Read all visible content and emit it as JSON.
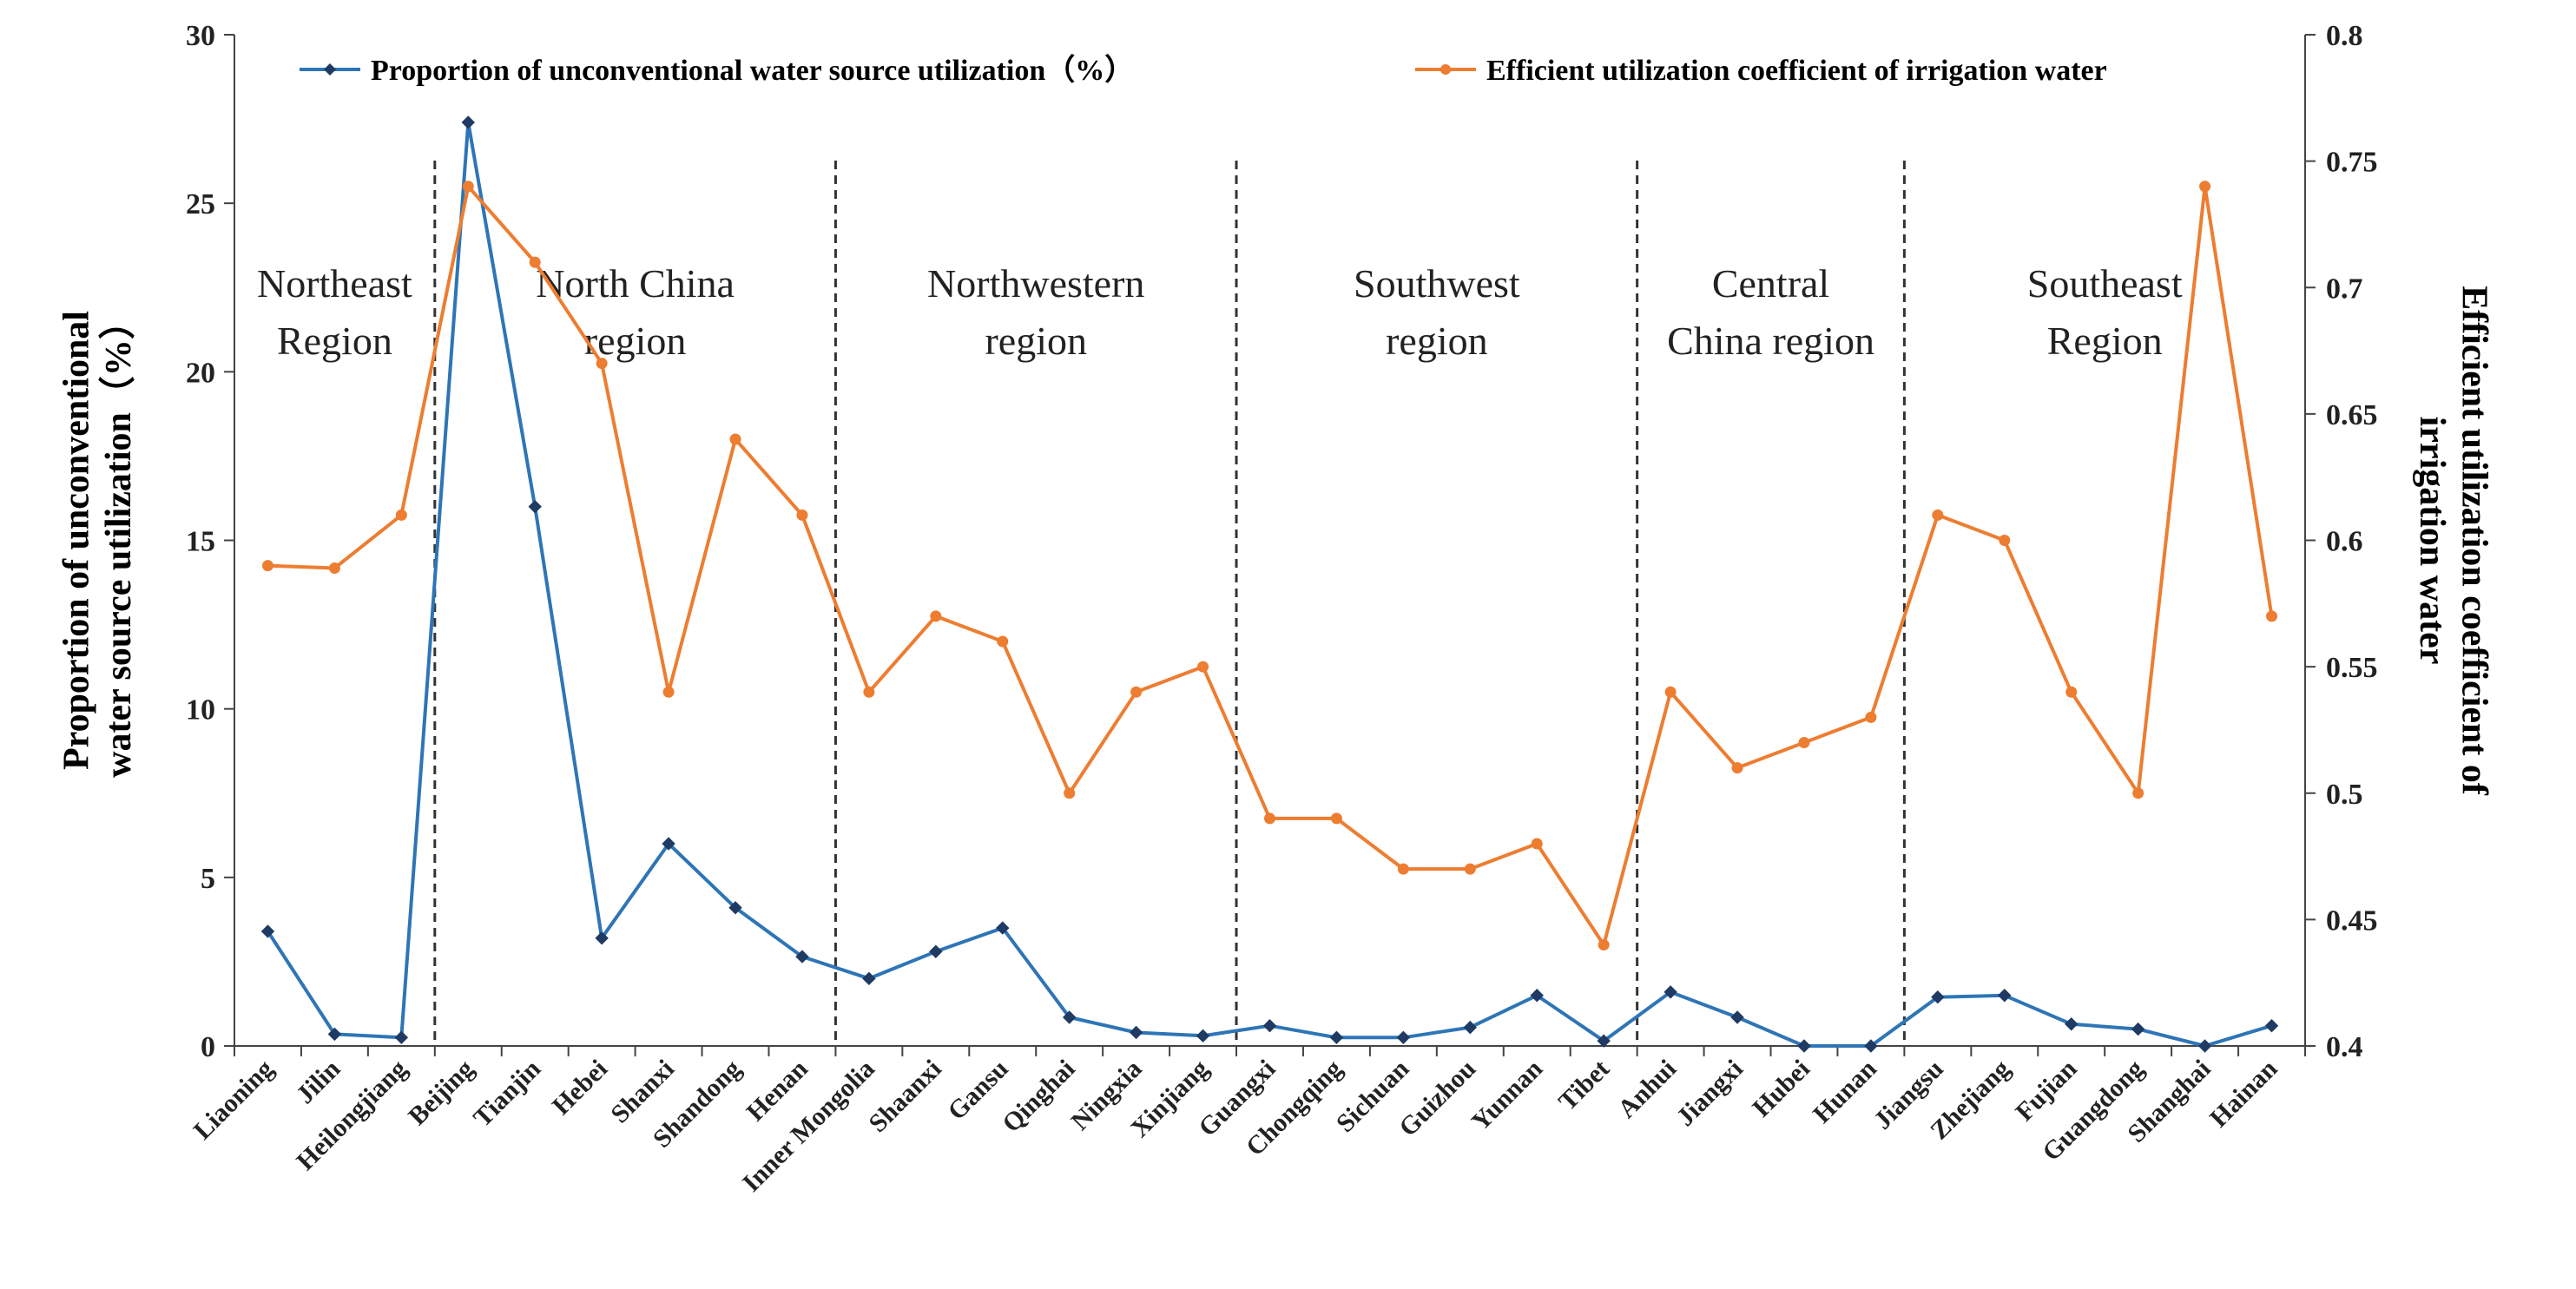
{
  "chart_data": {
    "type": "line",
    "title": "",
    "categories": [
      "Liaoning",
      "Jilin",
      "Heilongjiang",
      "Beijing",
      "Tianjin",
      "Hebei",
      "Shanxi",
      "Shandong",
      "Henan",
      "Inner Mongolia",
      "Shaanxi",
      "Gansu",
      "Qinghai",
      "Ningxia",
      "Xinjiang",
      "Guangxi",
      "Chongqing",
      "Sichuan",
      "Guizhou",
      "Yunnan",
      "Tibet",
      "Anhui",
      "Jiangxi",
      "Hubei",
      "Hunan",
      "Jiangsu",
      "Zhejiang",
      "Fujian",
      "Guangdong",
      "Shanghai",
      "Hainan"
    ],
    "series": [
      {
        "name": "Proportion of unconventional water source utilization（%）",
        "axis": "left",
        "color": "#2e75b6",
        "marker": "diamond",
        "values": [
          3.4,
          0.35,
          0.25,
          27.4,
          16.0,
          3.2,
          6.0,
          4.1,
          2.65,
          2.0,
          2.8,
          3.5,
          0.85,
          0.4,
          0.3,
          0.6,
          0.25,
          0.25,
          0.55,
          1.5,
          0.15,
          1.6,
          0.85,
          0.0,
          0.0,
          1.45,
          1.5,
          0.65,
          0.5,
          0.0,
          0.6
        ]
      },
      {
        "name": "Efficient utilization coefficient of irrigation water",
        "axis": "right",
        "color": "#ed7d31",
        "marker": "circle",
        "values": [
          0.59,
          0.589,
          0.61,
          0.74,
          0.71,
          0.67,
          0.54,
          0.64,
          0.61,
          0.54,
          0.57,
          0.56,
          0.5,
          0.54,
          0.55,
          0.49,
          0.49,
          0.47,
          0.47,
          0.48,
          0.44,
          0.54,
          0.51,
          0.52,
          0.53,
          0.61,
          0.6,
          0.54,
          0.5,
          0.74,
          0.57
        ]
      }
    ],
    "y_left": {
      "label": "Proportion of unconventional water source utilization（%）",
      "label_lines": [
        "Proportion of unconventional",
        "water source utilization（%）"
      ],
      "ylim": [
        0,
        30
      ],
      "ticks": [
        0,
        5,
        10,
        15,
        20,
        25,
        30
      ]
    },
    "y_right": {
      "label": "Efficient utilization coefficient of irrigation water",
      "label_lines": [
        "Efficient utilization coefficient of",
        "irrigation water"
      ],
      "ylim": [
        0.4,
        0.8
      ],
      "ticks": [
        "0.4",
        "0.45",
        "0.5",
        "0.55",
        "0.6",
        "0.65",
        "0.7",
        "0.75",
        "0.8"
      ]
    },
    "legend": {
      "placement": "top",
      "entries": [
        "Proportion of unconventional water source utilization（%）",
        "Efficient utilization coefficient of irrigation water"
      ]
    },
    "regions": [
      {
        "lines": [
          "Northeast",
          "Region"
        ],
        "start": 0,
        "end": 2
      },
      {
        "lines": [
          "North China",
          "region"
        ],
        "start": 3,
        "end": 8
      },
      {
        "lines": [
          "Northwestern",
          "region"
        ],
        "start": 9,
        "end": 14
      },
      {
        "lines": [
          "Southwest",
          "region"
        ],
        "start": 15,
        "end": 20
      },
      {
        "lines": [
          "Central",
          "China region"
        ],
        "start": 21,
        "end": 24
      },
      {
        "lines": [
          "Southeast",
          "Region"
        ],
        "start": 25,
        "end": 30
      }
    ],
    "grid": false
  }
}
